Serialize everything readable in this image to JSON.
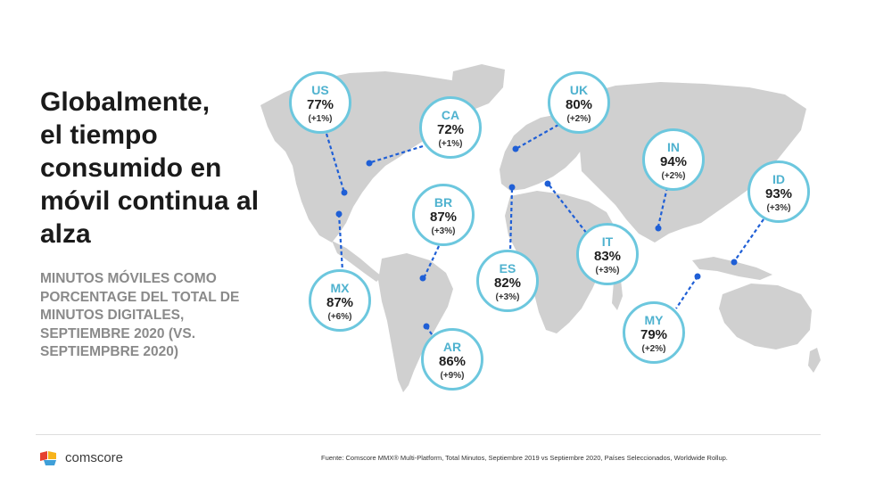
{
  "title_lines": [
    "Globalmente,",
    "el tiempo",
    "consumido en",
    "móvil continua al",
    "alza"
  ],
  "subtitle_lines": [
    "MINUTOS MÓVILES COMO",
    "PORCENTAGE DEL TOTAL DE",
    "MINUTOS DIGITALES,",
    "SEPTIEMBRE 2020 (VS.",
    "SEPTIEMPBRE 2020)"
  ],
  "countries": [
    {
      "code": "US",
      "share": "77%",
      "change": "(+1%)"
    },
    {
      "code": "CA",
      "share": "72%",
      "change": "(+1%)"
    },
    {
      "code": "UK",
      "share": "80%",
      "change": "(+2%)"
    },
    {
      "code": "IN",
      "share": "94%",
      "change": "(+2%)"
    },
    {
      "code": "ID",
      "share": "93%",
      "change": "(+3%)"
    },
    {
      "code": "BR",
      "share": "87%",
      "change": "(+3%)"
    },
    {
      "code": "MX",
      "share": "87%",
      "change": "(+6%)"
    },
    {
      "code": "ES",
      "share": "82%",
      "change": "(+3%)"
    },
    {
      "code": "IT",
      "share": "83%",
      "change": "(+3%)"
    },
    {
      "code": "MY",
      "share": "79%",
      "change": "(+2%)"
    },
    {
      "code": "AR",
      "share": "86%",
      "change": "(+9%)"
    }
  ],
  "footer": {
    "brand": "comscore",
    "source": "Fuente: Comscore MMX® Multi-Platform, Total Minutos, Septiembre 2019 vs Septiembre 2020, Países Seleccionados, Worldwide Rollup."
  },
  "colors": {
    "accent": "#6cc7de",
    "code_text": "#4fb2cf",
    "connector": "#1f5fd6",
    "land": "#d0d0d0",
    "subtitle": "#8a8a8a",
    "logo": [
      "#e6402f",
      "#f7b31b",
      "#3f9fd8"
    ]
  },
  "icons": [
    "comscore-logo-icon"
  ]
}
